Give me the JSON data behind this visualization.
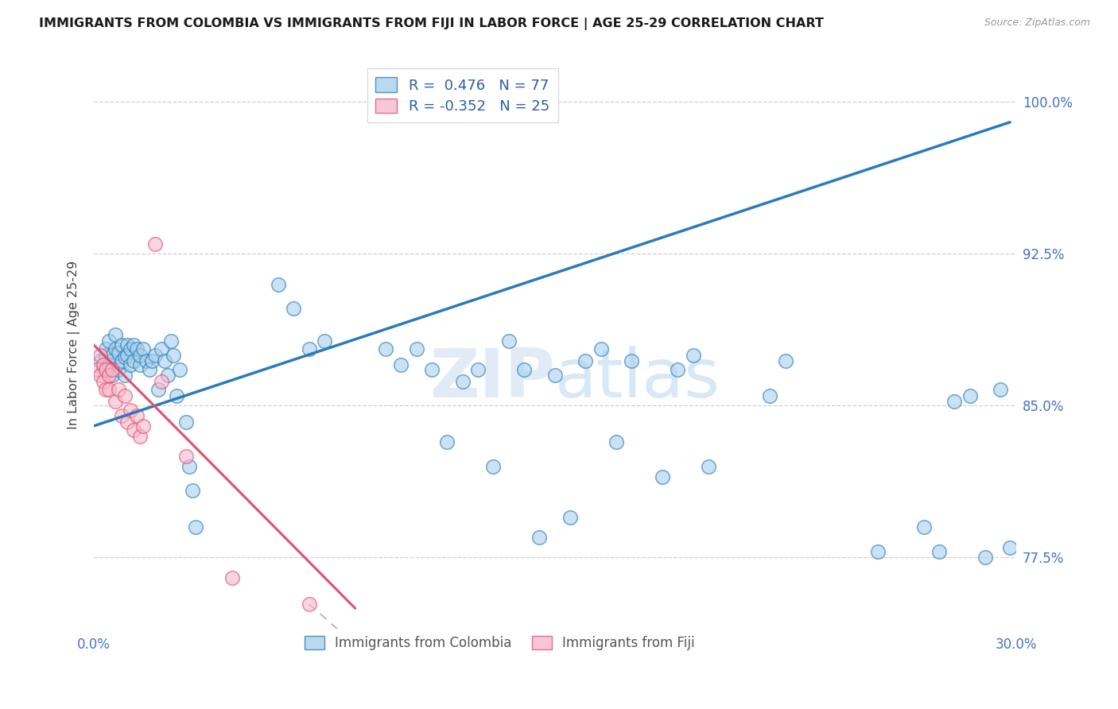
{
  "title": "IMMIGRANTS FROM COLOMBIA VS IMMIGRANTS FROM FIJI IN LABOR FORCE | AGE 25-29 CORRELATION CHART",
  "source": "Source: ZipAtlas.com",
  "ylabel": "In Labor Force | Age 25-29",
  "xlim": [
    0.0,
    0.3
  ],
  "ylim": [
    0.74,
    1.02
  ],
  "xticks": [
    0.0,
    0.05,
    0.1,
    0.15,
    0.2,
    0.25,
    0.3
  ],
  "xticklabels": [
    "0.0%",
    "",
    "",
    "",
    "",
    "",
    "30.0%"
  ],
  "yticks_right": [
    1.0,
    0.925,
    0.85,
    0.775
  ],
  "ytick_right_labels": [
    "100.0%",
    "92.5%",
    "85.0%",
    "77.5%"
  ],
  "colombia_R": 0.476,
  "colombia_N": 77,
  "fiji_R": -0.352,
  "fiji_N": 25,
  "colombia_color": "#a8d0ec",
  "fiji_color": "#f7b8cc",
  "trend_colombia_color": "#2b7bba",
  "trend_fiji_color": "#e05070",
  "watermark_color": "#dce8f5",
  "colombia_x": [
    0.002,
    0.003,
    0.004,
    0.004,
    0.005,
    0.005,
    0.006,
    0.006,
    0.007,
    0.007,
    0.008,
    0.008,
    0.009,
    0.009,
    0.01,
    0.01,
    0.011,
    0.011,
    0.012,
    0.012,
    0.013,
    0.013,
    0.014,
    0.015,
    0.015,
    0.016,
    0.017,
    0.018,
    0.019,
    0.02,
    0.021,
    0.022,
    0.023,
    0.024,
    0.025,
    0.026,
    0.027,
    0.028,
    0.03,
    0.031,
    0.032,
    0.033,
    0.06,
    0.065,
    0.07,
    0.075,
    0.095,
    0.1,
    0.105,
    0.11,
    0.115,
    0.12,
    0.125,
    0.13,
    0.135,
    0.14,
    0.145,
    0.15,
    0.155,
    0.16,
    0.165,
    0.17,
    0.175,
    0.185,
    0.19,
    0.195,
    0.2,
    0.22,
    0.225,
    0.255,
    0.27,
    0.275,
    0.28,
    0.285,
    0.29,
    0.295,
    0.298
  ],
  "colombia_y": [
    0.872,
    0.868,
    0.875,
    0.878,
    0.87,
    0.882,
    0.865,
    0.875,
    0.878,
    0.885,
    0.868,
    0.876,
    0.872,
    0.88,
    0.865,
    0.874,
    0.88,
    0.875,
    0.87,
    0.878,
    0.872,
    0.88,
    0.878,
    0.87,
    0.875,
    0.878,
    0.872,
    0.868,
    0.872,
    0.875,
    0.858,
    0.878,
    0.872,
    0.865,
    0.882,
    0.875,
    0.855,
    0.868,
    0.842,
    0.82,
    0.808,
    0.79,
    0.91,
    0.898,
    0.878,
    0.882,
    0.878,
    0.87,
    0.878,
    0.868,
    0.832,
    0.862,
    0.868,
    0.82,
    0.882,
    0.868,
    0.785,
    0.865,
    0.795,
    0.872,
    0.878,
    0.832,
    0.872,
    0.815,
    0.868,
    0.875,
    0.82,
    0.855,
    0.872,
    0.778,
    0.79,
    0.778,
    0.852,
    0.855,
    0.775,
    0.858,
    0.78
  ],
  "fiji_x": [
    0.001,
    0.002,
    0.002,
    0.003,
    0.003,
    0.004,
    0.004,
    0.005,
    0.005,
    0.006,
    0.007,
    0.008,
    0.009,
    0.01,
    0.011,
    0.012,
    0.013,
    0.014,
    0.015,
    0.016,
    0.02,
    0.022,
    0.03,
    0.045,
    0.07
  ],
  "fiji_y": [
    0.868,
    0.875,
    0.865,
    0.87,
    0.862,
    0.868,
    0.858,
    0.865,
    0.858,
    0.868,
    0.852,
    0.858,
    0.845,
    0.855,
    0.842,
    0.848,
    0.838,
    0.845,
    0.835,
    0.84,
    0.93,
    0.862,
    0.825,
    0.765,
    0.752
  ],
  "colombia_trend_x": [
    0.0,
    0.298
  ],
  "colombia_trend_y": [
    0.84,
    0.99
  ],
  "fiji_trend_x": [
    0.0,
    0.085
  ],
  "fiji_trend_y": [
    0.88,
    0.75
  ]
}
